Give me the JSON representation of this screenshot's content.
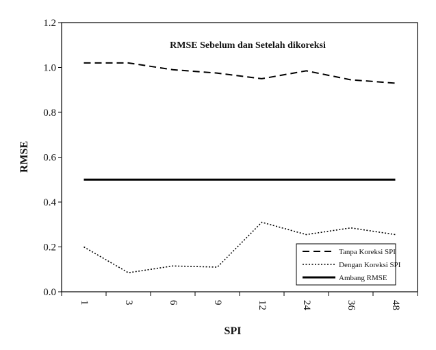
{
  "chart_data": {
    "type": "line",
    "title": "RMSE Sebelum dan Setelah dikoreksi",
    "xlabel": "SPI",
    "ylabel": "RMSE",
    "categories": [
      "1",
      "3",
      "6",
      "9",
      "12",
      "24",
      "36",
      "48"
    ],
    "ylim": [
      0.0,
      1.2
    ],
    "yticks": [
      "0.0",
      "0.2",
      "0.4",
      "0.6",
      "0.8",
      "1.0",
      "1.2"
    ],
    "grid": false,
    "legend_position": "bottom-right",
    "series": [
      {
        "name": "Tanpa Koreksi SPI",
        "style": "dashed",
        "values": [
          1.02,
          1.02,
          0.99,
          0.975,
          0.95,
          0.985,
          0.945,
          0.93
        ]
      },
      {
        "name": "Dengan Koreksi SPI",
        "style": "dotted",
        "values": [
          0.2,
          0.085,
          0.115,
          0.11,
          0.31,
          0.255,
          0.285,
          0.255
        ]
      },
      {
        "name": "Ambang RMSE",
        "style": "solid",
        "values": [
          0.5,
          0.5,
          0.5,
          0.5,
          0.5,
          0.5,
          0.5,
          0.5
        ]
      }
    ]
  }
}
